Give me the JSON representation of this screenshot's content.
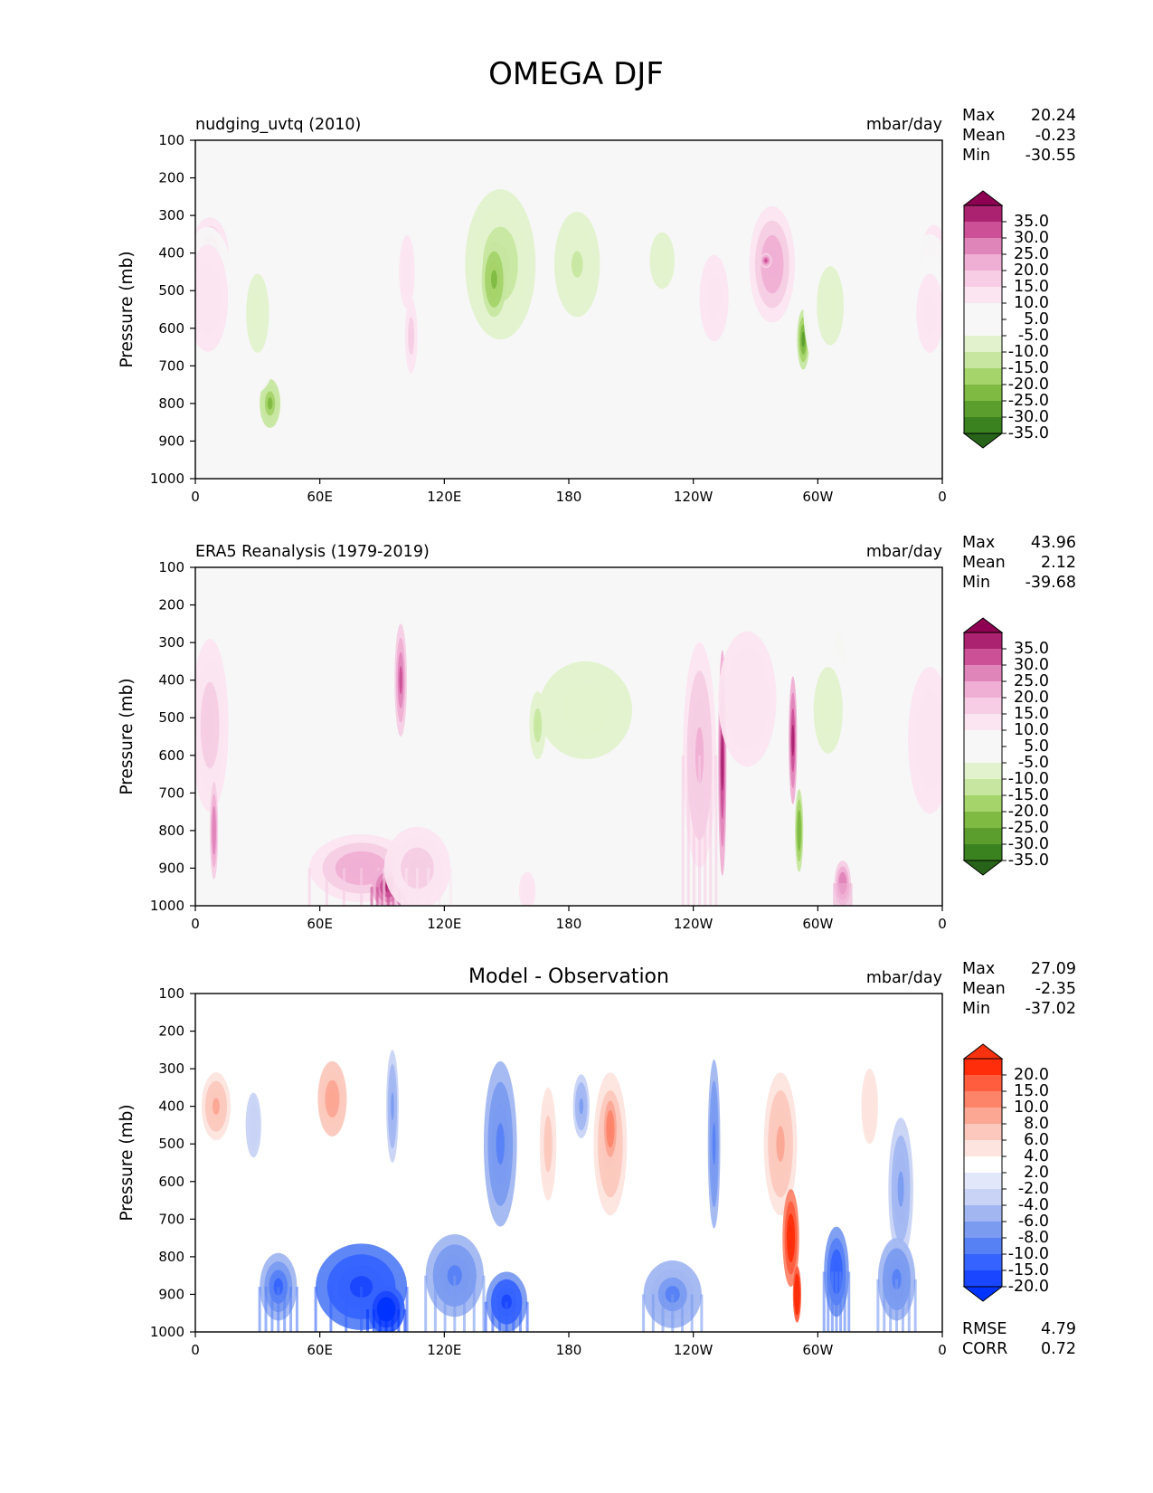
{
  "figure": {
    "title": "OMEGA DJF"
  },
  "palettes": {
    "pink_green": [
      "#276419",
      "#39821f",
      "#5b9e2e",
      "#7fbb42",
      "#a5d46a",
      "#c7e7a0",
      "#e2f2cc",
      "#f7f7f7",
      "#f7f7f7",
      "#fbe5f0",
      "#f6cde4",
      "#efafd4",
      "#e085ba",
      "#cb5096",
      "#ab2370",
      "#8e0152"
    ],
    "red_blue": [
      "#0033ff",
      "#1a46ff",
      "#3563ff",
      "#5681f5",
      "#7a9bf0",
      "#a2b7f2",
      "#c8d3f6",
      "#e2e8fa",
      "#ffffff",
      "#fde4de",
      "#fcc8bd",
      "#fca694",
      "#fd8469",
      "#ff5d3d",
      "#ff2d0a",
      "#f8320f"
    ]
  },
  "chart_data": [
    {
      "type": "heatmap",
      "title": "nudging_uvtq (2010)",
      "units": "mbar/day",
      "stats": {
        "max_label": "Max",
        "max": "20.24",
        "mean_label": "Mean",
        "mean": "-0.23",
        "min_label": "Min",
        "min": "-30.55"
      },
      "xlabel": "",
      "ylabel": "Pressure (mb)",
      "x_ticks": [
        "0",
        "60E",
        "120E",
        "180",
        "120W",
        "60W",
        "0"
      ],
      "y_ticks": [
        "100",
        "200",
        "300",
        "400",
        "500",
        "600",
        "700",
        "800",
        "900",
        "1000"
      ],
      "xlim": [
        0,
        360
      ],
      "ylim": [
        1000,
        100
      ],
      "colorbar": {
        "levels": [
          "35.0",
          "30.0",
          "25.0",
          "20.0",
          "15.0",
          "10.0",
          "5.0",
          "-5.0",
          "-10.0",
          "-15.0",
          "-20.0",
          "-25.0",
          "-30.0",
          "-35.0"
        ],
        "palette": "pink_green"
      },
      "blobs": [
        {
          "lon": 7,
          "p": 400,
          "w": 9,
          "h": 190,
          "v": 19,
          "gy": 0
        },
        {
          "lon": 6,
          "p": 520,
          "w": 13,
          "h": 380,
          "v": 8,
          "gy": 0
        },
        {
          "lon": 36,
          "p": 800,
          "w": 5,
          "h": 130,
          "v": -21,
          "gy": 0
        },
        {
          "lon": 30,
          "p": 560,
          "w": 11,
          "h": 420,
          "v": -6,
          "gy": 0
        },
        {
          "lon": 102,
          "p": 450,
          "w": 5,
          "h": 260,
          "v": 9,
          "gy": 0
        },
        {
          "lon": 104,
          "p": 620,
          "w": 3,
          "h": 200,
          "v": 14,
          "gy": 0
        },
        {
          "lon": 147,
          "p": 430,
          "w": 17,
          "h": 400,
          "v": -12,
          "gy": 0
        },
        {
          "lon": 144,
          "p": 470,
          "w": 6,
          "h": 200,
          "v": -23,
          "gy": 0
        },
        {
          "lon": 184,
          "p": 430,
          "w": 11,
          "h": 280,
          "v": -11,
          "gy": 0
        },
        {
          "lon": 225,
          "p": 420,
          "w": 12,
          "h": 300,
          "v": -6,
          "gy": 0
        },
        {
          "lon": 250,
          "p": 520,
          "w": 14,
          "h": 460,
          "v": 7,
          "gy": 0
        },
        {
          "lon": 278,
          "p": 430,
          "w": 11,
          "h": 310,
          "v": 19,
          "gy": 0
        },
        {
          "lon": 275,
          "p": 420,
          "w": 3,
          "h": 40,
          "v": 28,
          "gy": 0
        },
        {
          "lon": 293,
          "p": 630,
          "w": 3,
          "h": 160,
          "v": -28,
          "gy": 0
        },
        {
          "lon": 306,
          "p": 540,
          "w": 13,
          "h": 420,
          "v": -6,
          "gy": 0
        },
        {
          "lon": 356,
          "p": 440,
          "w": 7,
          "h": 230,
          "v": 17,
          "gy": 0
        },
        {
          "lon": 354,
          "p": 560,
          "w": 13,
          "h": 420,
          "v": 7,
          "gy": 0
        }
      ]
    },
    {
      "type": "heatmap",
      "title": "ERA5 Reanalysis (1979-2019)",
      "units": "mbar/day",
      "stats": {
        "max_label": "Max",
        "max": "43.96",
        "mean_label": "Mean",
        "mean": "2.12",
        "min_label": "Min",
        "min": "-39.68"
      },
      "xlabel": "",
      "ylabel": "Pressure (mb)",
      "x_ticks": [
        "0",
        "60E",
        "120E",
        "180",
        "120W",
        "60W",
        "0"
      ],
      "y_ticks": [
        "100",
        "200",
        "300",
        "400",
        "500",
        "600",
        "700",
        "800",
        "900",
        "1000"
      ],
      "xlim": [
        0,
        360
      ],
      "ylim": [
        1000,
        100
      ],
      "colorbar": {
        "levels": [
          "35.0",
          "30.0",
          "25.0",
          "20.0",
          "15.0",
          "10.0",
          "5.0",
          "-5.0",
          "-10.0",
          "-15.0",
          "-20.0",
          "-25.0",
          "-30.0",
          "-35.0"
        ],
        "palette": "pink_green"
      },
      "blobs": [
        {
          "lon": 7,
          "p": 520,
          "w": 9,
          "h": 460,
          "v": 13,
          "gy": 0
        },
        {
          "lon": 9,
          "p": 800,
          "w": 2,
          "h": 260,
          "v": 25,
          "gy": 0
        },
        {
          "lon": 80,
          "p": 900,
          "w": 25,
          "h": 180,
          "v": 18,
          "gy": 1
        },
        {
          "lon": 93,
          "p": 950,
          "w": 8,
          "h": 110,
          "v": 34,
          "gy": 1
        },
        {
          "lon": 99,
          "p": 400,
          "w": 3,
          "h": 300,
          "v": 28,
          "gy": 0
        },
        {
          "lon": 107,
          "p": 900,
          "w": 16,
          "h": 220,
          "v": 12,
          "gy": 1
        },
        {
          "lon": 160,
          "p": 960,
          "w": 4,
          "h": 100,
          "v": 10,
          "gy": 0
        },
        {
          "lon": 188,
          "p": 480,
          "w": 45,
          "h": 520,
          "v": -6,
          "gy": 0
        },
        {
          "lon": 165,
          "p": 520,
          "w": 4,
          "h": 180,
          "v": -14,
          "gy": 0
        },
        {
          "lon": 243,
          "p": 600,
          "w": 8,
          "h": 600,
          "v": 16,
          "gy": 1
        },
        {
          "lon": 254,
          "p": 620,
          "w": 2,
          "h": 600,
          "v": 33,
          "gy": 0
        },
        {
          "lon": 266,
          "p": 450,
          "w": 14,
          "h": 360,
          "v": 10,
          "gy": 0
        },
        {
          "lon": 288,
          "p": 560,
          "w": 2,
          "h": 340,
          "v": 33,
          "gy": 0
        },
        {
          "lon": 291,
          "p": 800,
          "w": 2,
          "h": 220,
          "v": -24,
          "gy": 0
        },
        {
          "lon": 310,
          "p": 430,
          "w": 4,
          "h": 320,
          "v": -14,
          "gy": 0
        },
        {
          "lon": 305,
          "p": 480,
          "w": 14,
          "h": 460,
          "v": -6,
          "gy": 0
        },
        {
          "lon": 312,
          "p": 940,
          "w": 4,
          "h": 120,
          "v": 24,
          "gy": 1
        },
        {
          "lon": 354,
          "p": 560,
          "w": 14,
          "h": 520,
          "v": 9,
          "gy": 0
        }
      ]
    },
    {
      "type": "heatmap",
      "title": "Model - Observation",
      "units": "mbar/day",
      "stats": {
        "max_label": "Max",
        "max": "27.09",
        "mean_label": "Mean",
        "mean": "-2.35",
        "min_label": "Min",
        "min": "-37.02"
      },
      "metrics": {
        "rmse_label": "RMSE",
        "rmse": "4.79",
        "corr_label": "CORR",
        "corr": "0.72"
      },
      "xlabel": "",
      "ylabel": "Pressure (mb)",
      "x_ticks": [
        "0",
        "60E",
        "120E",
        "180",
        "120W",
        "60W",
        "0"
      ],
      "y_ticks": [
        "100",
        "200",
        "300",
        "400",
        "500",
        "600",
        "700",
        "800",
        "900",
        "1000"
      ],
      "xlim": [
        0,
        360
      ],
      "ylim": [
        1000,
        100
      ],
      "colorbar": {
        "levels": [
          "20.0",
          "15.0",
          "10.0",
          "8.0",
          "6.0",
          "4.0",
          "2.0",
          "-2.0",
          "-4.0",
          "-6.0",
          "-8.0",
          "-10.0",
          "-15.0",
          "-20.0"
        ],
        "palette": "red_blue"
      },
      "blobs": [
        {
          "lon": 10,
          "p": 400,
          "w": 7,
          "h": 180,
          "v": 7,
          "gy": 0
        },
        {
          "lon": 28,
          "p": 450,
          "w": 5,
          "h": 230,
          "v": -3,
          "gy": 0
        },
        {
          "lon": 40,
          "p": 880,
          "w": 9,
          "h": 180,
          "v": -11,
          "gy": 1
        },
        {
          "lon": 66,
          "p": 380,
          "w": 7,
          "h": 200,
          "v": 8,
          "gy": 0
        },
        {
          "lon": 80,
          "p": 880,
          "w": 22,
          "h": 230,
          "v": -16,
          "gy": 1
        },
        {
          "lon": 92,
          "p": 940,
          "w": 9,
          "h": 130,
          "v": -25,
          "gy": 1
        },
        {
          "lon": 95,
          "p": 400,
          "w": 3,
          "h": 300,
          "v": -7,
          "gy": 0
        },
        {
          "lon": 125,
          "p": 850,
          "w": 14,
          "h": 220,
          "v": -9,
          "gy": 1
        },
        {
          "lon": 147,
          "p": 500,
          "w": 8,
          "h": 440,
          "v": -9,
          "gy": 0
        },
        {
          "lon": 150,
          "p": 920,
          "w": 10,
          "h": 160,
          "v": -15,
          "gy": 1
        },
        {
          "lon": 170,
          "p": 500,
          "w": 4,
          "h": 300,
          "v": 5,
          "gy": 0
        },
        {
          "lon": 186,
          "p": 400,
          "w": 4,
          "h": 170,
          "v": -7,
          "gy": 0
        },
        {
          "lon": 200,
          "p": 500,
          "w": 8,
          "h": 380,
          "v": 7,
          "gy": 0
        },
        {
          "lon": 200,
          "p": 460,
          "w": 4,
          "h": 200,
          "v": 10,
          "gy": 0
        },
        {
          "lon": 230,
          "p": 900,
          "w": 14,
          "h": 180,
          "v": -8,
          "gy": 1
        },
        {
          "lon": 250,
          "p": 500,
          "w": 3,
          "h": 450,
          "v": -9,
          "gy": 0
        },
        {
          "lon": 282,
          "p": 500,
          "w": 8,
          "h": 380,
          "v": 7,
          "gy": 0
        },
        {
          "lon": 287,
          "p": 750,
          "w": 4,
          "h": 260,
          "v": 18,
          "gy": 0
        },
        {
          "lon": 290,
          "p": 900,
          "w": 2,
          "h": 150,
          "v": 23,
          "gy": 0
        },
        {
          "lon": 309,
          "p": 840,
          "w": 6,
          "h": 240,
          "v": -12,
          "gy": 1
        },
        {
          "lon": 340,
          "p": 620,
          "w": 6,
          "h": 380,
          "v": -6,
          "gy": 0
        },
        {
          "lon": 338,
          "p": 860,
          "w": 9,
          "h": 220,
          "v": -9,
          "gy": 1
        },
        {
          "lon": 325,
          "p": 400,
          "w": 4,
          "h": 200,
          "v": 4,
          "gy": 0
        }
      ]
    }
  ]
}
